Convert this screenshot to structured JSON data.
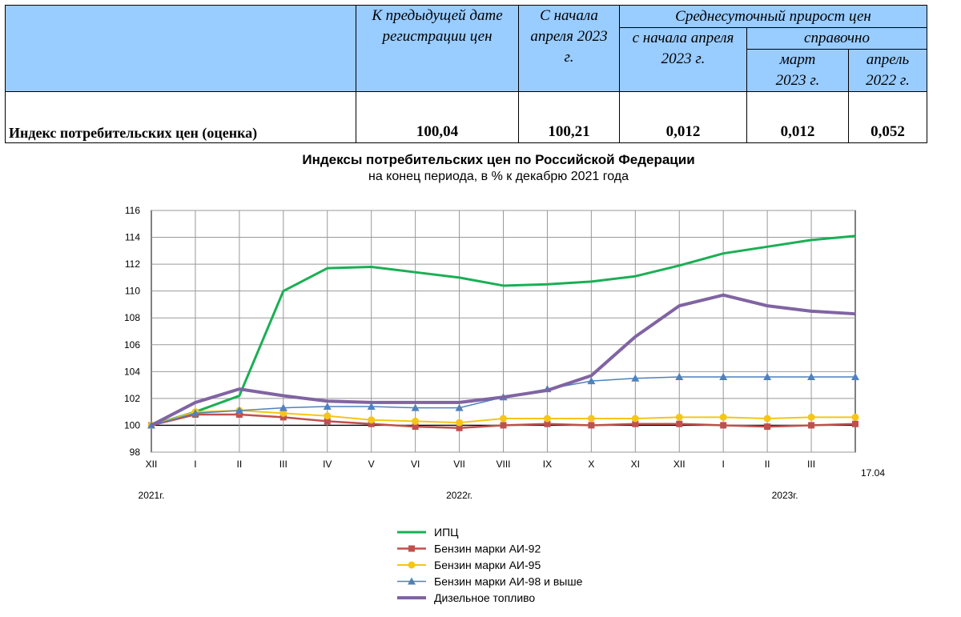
{
  "table": {
    "col_prev_date": "К предыдущей дате регистрации цен",
    "col_since_april": "С начала апреля 2023 г.",
    "col_avg_daily": "Среднесуточный прирост цен",
    "col_avg_since_april": "с начала апреля 2023 г.",
    "col_reference": "справочно",
    "col_march_2023": "март 2023 г.",
    "col_april_2022": "апрель 2022 г.",
    "row_label": "Индекс потребительских цен (оценка)",
    "values": [
      "100,04",
      "100,21",
      "0,012",
      "0,012",
      "0,052"
    ]
  },
  "chart_data": {
    "type": "line",
    "title": "Индексы потребительских цен по Российской Федерации",
    "subtitle": "на конец периода, в % к декабрю 2021 года",
    "categories": [
      "XII",
      "I",
      "II",
      "III",
      "IV",
      "V",
      "VI",
      "VII",
      "VIII",
      "IX",
      "X",
      "XI",
      "XII",
      "I",
      "II",
      "III",
      "17.04"
    ],
    "year_labels": [
      "2021г.",
      "2022г.",
      "2023г."
    ],
    "ylim": [
      98,
      116
    ],
    "yticks": [
      "98",
      "100",
      "102",
      "104",
      "106",
      "108",
      "110",
      "112",
      "114",
      "116"
    ],
    "series": [
      {
        "name": "ИПЦ",
        "color": "#1aaf54",
        "marker": "none",
        "values": [
          100,
          101.0,
          102.2,
          110.0,
          111.7,
          111.8,
          111.4,
          111.0,
          110.4,
          110.5,
          110.7,
          111.1,
          111.9,
          112.8,
          113.3,
          113.8,
          114.1
        ]
      },
      {
        "name": "Бензин марки АИ-92",
        "color": "#c0504d",
        "marker": "square",
        "values": [
          100,
          100.8,
          100.8,
          100.6,
          100.3,
          100.1,
          99.9,
          99.8,
          100.0,
          100.1,
          100.0,
          100.1,
          100.1,
          100.0,
          99.9,
          100.0,
          100.1
        ]
      },
      {
        "name": "Бензин марки АИ-95",
        "color": "#f5c518",
        "marker": "circle",
        "values": [
          100,
          101.0,
          101.1,
          100.9,
          100.7,
          100.4,
          100.3,
          100.2,
          100.5,
          100.5,
          100.5,
          100.5,
          100.6,
          100.6,
          100.5,
          100.6,
          100.6
        ]
      },
      {
        "name": "Бензин марки АИ-98 и выше",
        "color": "#4f81bd",
        "marker": "triangle",
        "values": [
          100,
          100.9,
          101.1,
          101.3,
          101.4,
          101.4,
          101.3,
          101.3,
          102.1,
          102.7,
          103.3,
          103.5,
          103.6,
          103.6,
          103.6,
          103.6,
          103.6
        ]
      },
      {
        "name": "Дизельное топливо",
        "color": "#8064a2",
        "marker": "none",
        "values": [
          100,
          101.7,
          102.7,
          102.2,
          101.8,
          101.7,
          101.7,
          101.7,
          102.1,
          102.6,
          103.7,
          106.6,
          108.9,
          109.7,
          108.9,
          108.5,
          108.3
        ]
      }
    ]
  }
}
